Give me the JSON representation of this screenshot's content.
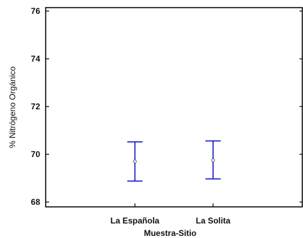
{
  "chart_data": {
    "type": "interval",
    "xlabel": "Muestra-Sitio",
    "ylabel": "% Nitrógeno Orgánico",
    "categories": [
      "La Española",
      "La Solita"
    ],
    "ylim": [
      67.6,
      76.2
    ],
    "yticks": [
      68,
      70,
      72,
      74,
      76
    ],
    "series": [
      {
        "mean": [
          69.7,
          69.75
        ],
        "lower": [
          68.88,
          68.97
        ],
        "upper": [
          70.52,
          70.56
        ]
      }
    ],
    "grid": false,
    "colors": {
      "interval": "#1a1acc",
      "mean_marker": "#555555",
      "axes": "#000000"
    }
  }
}
